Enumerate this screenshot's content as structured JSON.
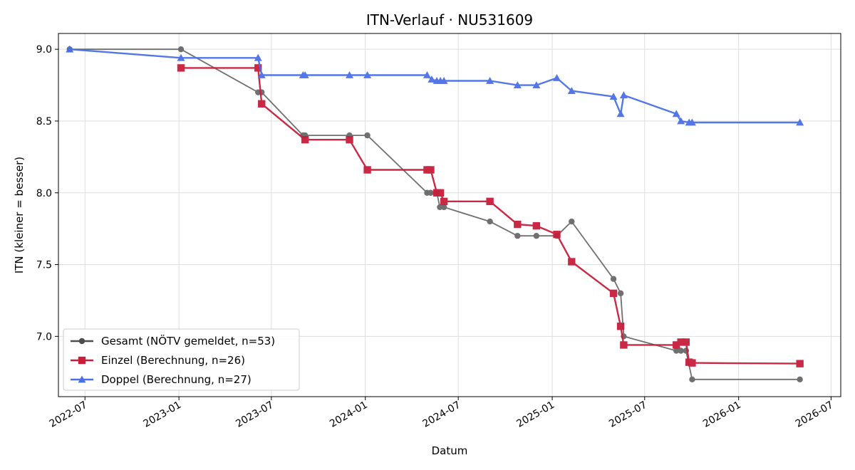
{
  "chart_data": {
    "type": "line",
    "title": "ITN-Verlauf · NU531609",
    "xlabel": "Datum",
    "ylabel": "ITN  (kleiner = besser)",
    "xlim": [
      "2022-05-10",
      "2026-07-20"
    ],
    "ylim": [
      6.58,
      9.11
    ],
    "x_ticks": [
      "2022-07-01",
      "2023-01-01",
      "2023-07-01",
      "2024-01-01",
      "2024-07-01",
      "2025-01-01",
      "2025-07-01",
      "2026-01-01",
      "2026-07-01"
    ],
    "x_tick_labels": [
      "2022-07",
      "2023-01",
      "2023-07",
      "2024-01",
      "2024-07",
      "2025-01",
      "2025-07",
      "2026-01",
      "2026-07"
    ],
    "y_ticks": [
      7.0,
      7.5,
      8.0,
      8.5,
      9.0
    ],
    "y_tick_labels": [
      "7.0",
      "7.5",
      "8.0",
      "8.5",
      "9.0"
    ],
    "grid": true,
    "legend_position": "lower-left",
    "series": [
      {
        "name": "Gesamt (NÖTV gemeldet, n=53)",
        "color": "#4d4d4d",
        "marker": "circle",
        "points": [
          [
            "2022-06-01",
            9.0
          ],
          [
            "2023-01-05",
            9.0
          ],
          [
            "2023-06-05",
            8.7
          ],
          [
            "2023-06-12",
            8.7
          ],
          [
            "2023-09-01",
            8.4
          ],
          [
            "2023-09-05",
            8.4
          ],
          [
            "2023-12-01",
            8.4
          ],
          [
            "2024-01-05",
            8.4
          ],
          [
            "2024-05-01",
            8.0
          ],
          [
            "2024-05-08",
            8.0
          ],
          [
            "2024-05-20",
            8.0
          ],
          [
            "2024-05-26",
            7.9
          ],
          [
            "2024-06-03",
            7.9
          ],
          [
            "2024-09-01",
            7.8
          ],
          [
            "2024-10-25",
            7.7
          ],
          [
            "2024-12-01",
            7.7
          ],
          [
            "2025-01-10",
            7.7
          ],
          [
            "2025-02-08",
            7.8
          ],
          [
            "2025-05-01",
            7.4
          ],
          [
            "2025-05-15",
            7.3
          ],
          [
            "2025-05-21",
            7.0
          ],
          [
            "2025-09-01",
            6.9
          ],
          [
            "2025-09-10",
            6.9
          ],
          [
            "2025-09-20",
            6.9
          ],
          [
            "2025-10-02",
            6.7
          ],
          [
            "2026-05-01",
            6.7
          ]
        ]
      },
      {
        "name": "Einzel (Berechnung, n=26)",
        "color": "#c81e3c",
        "marker": "square",
        "points": [
          [
            "2023-01-05",
            8.87
          ],
          [
            "2023-06-05",
            8.87
          ],
          [
            "2023-06-12",
            8.62
          ],
          [
            "2023-09-05",
            8.37
          ],
          [
            "2023-12-01",
            8.37
          ],
          [
            "2024-01-05",
            8.16
          ],
          [
            "2024-05-01",
            8.16
          ],
          [
            "2024-05-08",
            8.16
          ],
          [
            "2024-05-20",
            8.0
          ],
          [
            "2024-05-27",
            8.0
          ],
          [
            "2024-06-03",
            7.94
          ],
          [
            "2024-09-01",
            7.94
          ],
          [
            "2024-10-25",
            7.78
          ],
          [
            "2024-12-01",
            7.77
          ],
          [
            "2025-01-10",
            7.71
          ],
          [
            "2025-02-08",
            7.52
          ],
          [
            "2025-05-01",
            7.3
          ],
          [
            "2025-05-15",
            7.07
          ],
          [
            "2025-05-21",
            6.94
          ],
          [
            "2025-09-01",
            6.94
          ],
          [
            "2025-09-10",
            6.96
          ],
          [
            "2025-09-20",
            6.96
          ],
          [
            "2025-09-26",
            6.82
          ],
          [
            "2025-10-02",
            6.815
          ],
          [
            "2026-05-01",
            6.81
          ]
        ]
      },
      {
        "name": "Doppel (Berechnung, n=27)",
        "color": "#4a6fe8",
        "marker": "triangle",
        "points": [
          [
            "2022-06-01",
            9.0
          ],
          [
            "2023-01-05",
            8.94
          ],
          [
            "2023-06-05",
            8.94
          ],
          [
            "2023-06-12",
            8.82
          ],
          [
            "2023-09-01",
            8.82
          ],
          [
            "2023-09-05",
            8.82
          ],
          [
            "2023-12-01",
            8.82
          ],
          [
            "2024-01-05",
            8.82
          ],
          [
            "2024-05-01",
            8.82
          ],
          [
            "2024-05-10",
            8.79
          ],
          [
            "2024-05-20",
            8.78
          ],
          [
            "2024-05-27",
            8.78
          ],
          [
            "2024-06-03",
            8.78
          ],
          [
            "2024-09-01",
            8.78
          ],
          [
            "2024-10-25",
            8.75
          ],
          [
            "2024-12-01",
            8.75
          ],
          [
            "2025-01-10",
            8.8
          ],
          [
            "2025-02-08",
            8.71
          ],
          [
            "2025-05-01",
            8.67
          ],
          [
            "2025-05-15",
            8.55
          ],
          [
            "2025-05-21",
            8.68
          ],
          [
            "2025-09-01",
            8.55
          ],
          [
            "2025-09-10",
            8.5
          ],
          [
            "2025-09-26",
            8.49
          ],
          [
            "2025-10-02",
            8.49
          ],
          [
            "2026-05-01",
            8.49
          ]
        ]
      }
    ]
  }
}
